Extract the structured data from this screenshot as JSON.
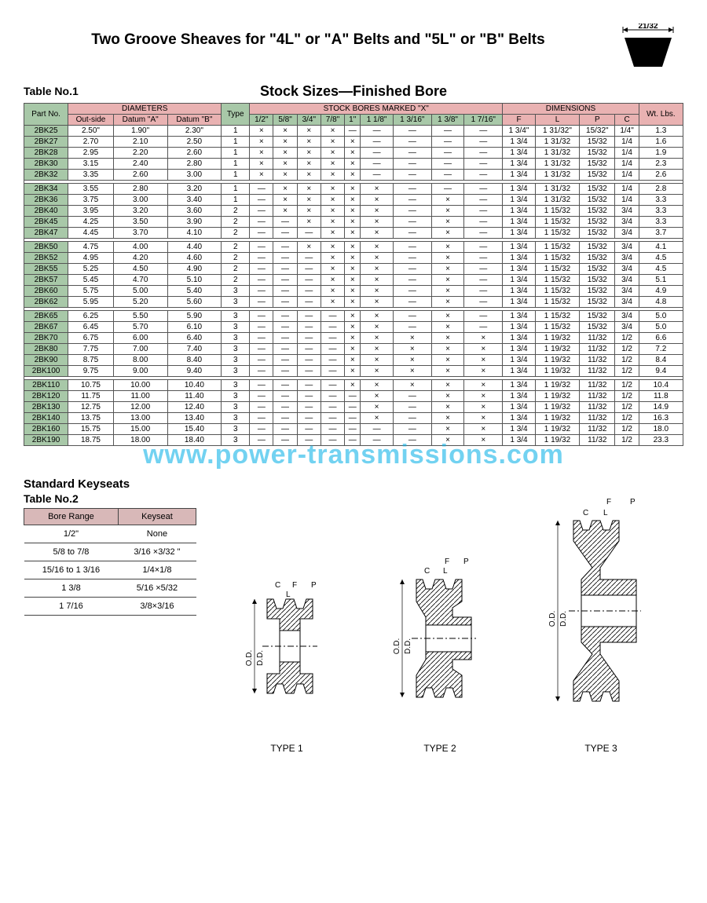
{
  "title": "Two Groove Sheaves for \"4L\" or \"A\" Belts and \"5L\" or \"B\" Belts",
  "subtitle": "Stock Sizes—Finished Bore",
  "table1_label": "Table No.1",
  "belt_dim": "21/32",
  "watermark": "www.power-transmissions.com",
  "colors": {
    "header_pink": "#e9b2b2",
    "header_green": "#a8c8a8",
    "border": "#555555",
    "watermark": "#00aee6",
    "keyseat_header": "#d8b8b8"
  },
  "headers": {
    "part_no": "Part No.",
    "diameters": "DIAMETERS",
    "outside": "Out-side",
    "datum_a": "Datum \"A\"",
    "datum_b": "Datum \"B\"",
    "type": "Type",
    "stock_bores": "STOCK BORES MARKED \"X\"",
    "bore_cols": [
      "1/2\"",
      "5/8\"",
      "3/4\"",
      "7/8\"",
      "1\"",
      "1 1/8\"",
      "1 3/16\"",
      "1 3/8\"",
      "1 7/16\""
    ],
    "dimensions": "DIMENSIONS",
    "dim_cols": [
      "F",
      "L",
      "P",
      "C"
    ],
    "wt": "Wt. Lbs."
  },
  "groups": [
    [
      {
        "pn": "2BK25",
        "os": "2.50\"",
        "da": "1.90\"",
        "db": "2.30\"",
        "t": "1",
        "b": [
          "×",
          "×",
          "×",
          "×",
          "—",
          "—",
          "—",
          "—",
          "—"
        ],
        "F": "1 3/4\"",
        "L": "1 31/32\"",
        "P": "15/32\"",
        "C": "1/4\"",
        "wt": "1.3"
      },
      {
        "pn": "2BK27",
        "os": "2.70",
        "da": "2.10",
        "db": "2.50",
        "t": "1",
        "b": [
          "×",
          "×",
          "×",
          "×",
          "×",
          "—",
          "—",
          "—",
          "—"
        ],
        "F": "1 3/4",
        "L": "1 31/32",
        "P": "15/32",
        "C": "1/4",
        "wt": "1.6"
      },
      {
        "pn": "2BK28",
        "os": "2.95",
        "da": "2.20",
        "db": "2.60",
        "t": "1",
        "b": [
          "×",
          "×",
          "×",
          "×",
          "×",
          "—",
          "—",
          "—",
          "—"
        ],
        "F": "1 3/4",
        "L": "1 31/32",
        "P": "15/32",
        "C": "1/4",
        "wt": "1.9"
      },
      {
        "pn": "2BK30",
        "os": "3.15",
        "da": "2.40",
        "db": "2.80",
        "t": "1",
        "b": [
          "×",
          "×",
          "×",
          "×",
          "×",
          "—",
          "—",
          "—",
          "—"
        ],
        "F": "1 3/4",
        "L": "1 31/32",
        "P": "15/32",
        "C": "1/4",
        "wt": "2.3"
      },
      {
        "pn": "2BK32",
        "os": "3.35",
        "da": "2.60",
        "db": "3.00",
        "t": "1",
        "b": [
          "×",
          "×",
          "×",
          "×",
          "×",
          "—",
          "—",
          "—",
          "—"
        ],
        "F": "1 3/4",
        "L": "1 31/32",
        "P": "15/32",
        "C": "1/4",
        "wt": "2.6"
      }
    ],
    [
      {
        "pn": "2BK34",
        "os": "3.55",
        "da": "2.80",
        "db": "3.20",
        "t": "1",
        "b": [
          "—",
          "×",
          "×",
          "×",
          "×",
          "×",
          "—",
          "—",
          "—"
        ],
        "F": "1 3/4",
        "L": "1 31/32",
        "P": "15/32",
        "C": "1/4",
        "wt": "2.8"
      },
      {
        "pn": "2BK36",
        "os": "3.75",
        "da": "3.00",
        "db": "3.40",
        "t": "1",
        "b": [
          "—",
          "×",
          "×",
          "×",
          "×",
          "×",
          "—",
          "×",
          "—"
        ],
        "F": "1 3/4",
        "L": "1 31/32",
        "P": "15/32",
        "C": "1/4",
        "wt": "3.3"
      },
      {
        "pn": "2BK40",
        "os": "3.95",
        "da": "3.20",
        "db": "3.60",
        "t": "2",
        "b": [
          "—",
          "×",
          "×",
          "×",
          "×",
          "×",
          "—",
          "×",
          "—"
        ],
        "F": "1 3/4",
        "L": "1 15/32",
        "P": "15/32",
        "C": "3/4",
        "wt": "3.3"
      },
      {
        "pn": "2BK45",
        "os": "4.25",
        "da": "3.50",
        "db": "3.90",
        "t": "2",
        "b": [
          "—",
          "—",
          "×",
          "×",
          "×",
          "×",
          "—",
          "×",
          "—"
        ],
        "F": "1 3/4",
        "L": "1 15/32",
        "P": "15/32",
        "C": "3/4",
        "wt": "3.3"
      },
      {
        "pn": "2BK47",
        "os": "4.45",
        "da": "3.70",
        "db": "4.10",
        "t": "2",
        "b": [
          "—",
          "—",
          "—",
          "×",
          "×",
          "×",
          "—",
          "×",
          "—"
        ],
        "F": "1 3/4",
        "L": "1 15/32",
        "P": "15/32",
        "C": "3/4",
        "wt": "3.7"
      }
    ],
    [
      {
        "pn": "2BK50",
        "os": "4.75",
        "da": "4.00",
        "db": "4.40",
        "t": "2",
        "b": [
          "—",
          "—",
          "×",
          "×",
          "×",
          "×",
          "—",
          "×",
          "—"
        ],
        "F": "1 3/4",
        "L": "1 15/32",
        "P": "15/32",
        "C": "3/4",
        "wt": "4.1"
      },
      {
        "pn": "2BK52",
        "os": "4.95",
        "da": "4.20",
        "db": "4.60",
        "t": "2",
        "b": [
          "—",
          "—",
          "—",
          "×",
          "×",
          "×",
          "—",
          "×",
          "—"
        ],
        "F": "1 3/4",
        "L": "1 15/32",
        "P": "15/32",
        "C": "3/4",
        "wt": "4.5"
      },
      {
        "pn": "2BK55",
        "os": "5.25",
        "da": "4.50",
        "db": "4.90",
        "t": "2",
        "b": [
          "—",
          "—",
          "—",
          "×",
          "×",
          "×",
          "—",
          "×",
          "—"
        ],
        "F": "1 3/4",
        "L": "1 15/32",
        "P": "15/32",
        "C": "3/4",
        "wt": "4.5"
      },
      {
        "pn": "2BK57",
        "os": "5.45",
        "da": "4.70",
        "db": "5.10",
        "t": "2",
        "b": [
          "—",
          "—",
          "—",
          "×",
          "×",
          "×",
          "—",
          "×",
          "—"
        ],
        "F": "1 3/4",
        "L": "1 15/32",
        "P": "15/32",
        "C": "3/4",
        "wt": "5.1"
      },
      {
        "pn": "2BK60",
        "os": "5.75",
        "da": "5.00",
        "db": "5.40",
        "t": "3",
        "b": [
          "—",
          "—",
          "—",
          "×",
          "×",
          "×",
          "—",
          "×",
          "—"
        ],
        "F": "1 3/4",
        "L": "1 15/32",
        "P": "15/32",
        "C": "3/4",
        "wt": "4.9"
      },
      {
        "pn": "2BK62",
        "os": "5.95",
        "da": "5.20",
        "db": "5.60",
        "t": "3",
        "b": [
          "—",
          "—",
          "—",
          "×",
          "×",
          "×",
          "—",
          "×",
          "—"
        ],
        "F": "1 3/4",
        "L": "1 15/32",
        "P": "15/32",
        "C": "3/4",
        "wt": "4.8"
      }
    ],
    [
      {
        "pn": "2BK65",
        "os": "6.25",
        "da": "5.50",
        "db": "5.90",
        "t": "3",
        "b": [
          "—",
          "—",
          "—",
          "—",
          "×",
          "×",
          "—",
          "×",
          "—"
        ],
        "F": "1 3/4",
        "L": "1 15/32",
        "P": "15/32",
        "C": "3/4",
        "wt": "5.0"
      },
      {
        "pn": "2BK67",
        "os": "6.45",
        "da": "5.70",
        "db": "6.10",
        "t": "3",
        "b": [
          "—",
          "—",
          "—",
          "—",
          "×",
          "×",
          "—",
          "×",
          "—"
        ],
        "F": "1 3/4",
        "L": "1 15/32",
        "P": "15/32",
        "C": "3/4",
        "wt": "5.0"
      },
      {
        "pn": "2BK70",
        "os": "6.75",
        "da": "6.00",
        "db": "6.40",
        "t": "3",
        "b": [
          "—",
          "—",
          "—",
          "—",
          "×",
          "×",
          "×",
          "×",
          "×"
        ],
        "F": "1 3/4",
        "L": "1 19/32",
        "P": "11/32",
        "C": "1/2",
        "wt": "6.6"
      },
      {
        "pn": "2BK80",
        "os": "7.75",
        "da": "7.00",
        "db": "7.40",
        "t": "3",
        "b": [
          "—",
          "—",
          "—",
          "—",
          "×",
          "×",
          "×",
          "×",
          "×"
        ],
        "F": "1 3/4",
        "L": "1 19/32",
        "P": "11/32",
        "C": "1/2",
        "wt": "7.2"
      },
      {
        "pn": "2BK90",
        "os": "8.75",
        "da": "8.00",
        "db": "8.40",
        "t": "3",
        "b": [
          "—",
          "—",
          "—",
          "—",
          "×",
          "×",
          "×",
          "×",
          "×"
        ],
        "F": "1 3/4",
        "L": "1 19/32",
        "P": "11/32",
        "C": "1/2",
        "wt": "8.4"
      },
      {
        "pn": "2BK100",
        "os": "9.75",
        "da": "9.00",
        "db": "9.40",
        "t": "3",
        "b": [
          "—",
          "—",
          "—",
          "—",
          "×",
          "×",
          "×",
          "×",
          "×"
        ],
        "F": "1 3/4",
        "L": "1 19/32",
        "P": "11/32",
        "C": "1/2",
        "wt": "9.4"
      }
    ],
    [
      {
        "pn": "2BK110",
        "os": "10.75",
        "da": "10.00",
        "db": "10.40",
        "t": "3",
        "b": [
          "—",
          "—",
          "—",
          "—",
          "×",
          "×",
          "×",
          "×",
          "×"
        ],
        "F": "1 3/4",
        "L": "1 19/32",
        "P": "11/32",
        "C": "1/2",
        "wt": "10.4"
      },
      {
        "pn": "2BK120",
        "os": "11.75",
        "da": "11.00",
        "db": "11.40",
        "t": "3",
        "b": [
          "—",
          "—",
          "—",
          "—",
          "—",
          "×",
          "—",
          "×",
          "×"
        ],
        "F": "1 3/4",
        "L": "1 19/32",
        "P": "11/32",
        "C": "1/2",
        "wt": "11.8"
      },
      {
        "pn": "2BK130",
        "os": "12.75",
        "da": "12.00",
        "db": "12.40",
        "t": "3",
        "b": [
          "—",
          "—",
          "—",
          "—",
          "—",
          "×",
          "—",
          "×",
          "×"
        ],
        "F": "1 3/4",
        "L": "1 19/32",
        "P": "11/32",
        "C": "1/2",
        "wt": "14.9"
      },
      {
        "pn": "2BK140",
        "os": "13.75",
        "da": "13.00",
        "db": "13.40",
        "t": "3",
        "b": [
          "—",
          "—",
          "—",
          "—",
          "—",
          "×",
          "—",
          "×",
          "×"
        ],
        "F": "1 3/4",
        "L": "1 19/32",
        "P": "11/32",
        "C": "1/2",
        "wt": "16.3"
      },
      {
        "pn": "2BK160",
        "os": "15.75",
        "da": "15.00",
        "db": "15.40",
        "t": "3",
        "b": [
          "—",
          "—",
          "—",
          "—",
          "—",
          "—",
          "—",
          "×",
          "×"
        ],
        "F": "1 3/4",
        "L": "1 19/32",
        "P": "11/32",
        "C": "1/2",
        "wt": "18.0"
      },
      {
        "pn": "2BK190",
        "os": "18.75",
        "da": "18.00",
        "db": "18.40",
        "t": "3",
        "b": [
          "—",
          "—",
          "—",
          "—",
          "—",
          "—",
          "—",
          "×",
          "×"
        ],
        "F": "1 3/4",
        "L": "1 19/32",
        "P": "11/32",
        "C": "1/2",
        "wt": "23.3"
      }
    ]
  ],
  "keyseat": {
    "title": "Standard Keyseats",
    "label": "Table No.2",
    "headers": [
      "Bore Range",
      "Keyseat"
    ],
    "rows": [
      [
        "1/2\"",
        "None"
      ],
      [
        "5/8 to 7/8",
        "3/16 ×3/32 \""
      ],
      [
        "15/16 to 1 3/16",
        "1/4×1/8"
      ],
      [
        "1 3/8",
        "5/16 ×5/32"
      ],
      [
        "1 7/16",
        "3/8×3/16"
      ]
    ]
  },
  "diagram_labels": [
    "TYPE 1",
    "TYPE 2",
    "TYPE 3"
  ],
  "diagram_dim_labels": {
    "od": "O.D.",
    "dd": "D.D.",
    "F": "F",
    "P": "P",
    "C": "C",
    "L": "L"
  }
}
